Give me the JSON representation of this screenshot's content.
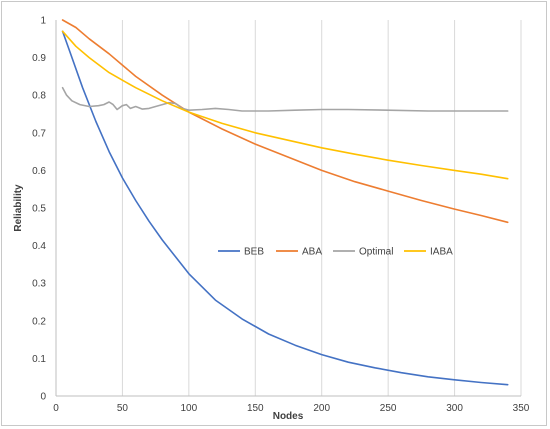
{
  "chart_data": {
    "type": "line",
    "title": "",
    "xlabel": "Nodes",
    "ylabel": "Reliability",
    "xlim": [
      0,
      350
    ],
    "ylim": [
      0,
      1
    ],
    "xticks": [
      0,
      50,
      100,
      150,
      200,
      250,
      300,
      350
    ],
    "yticks": [
      0,
      0.1,
      0.2,
      0.3,
      0.4,
      0.5,
      0.6,
      0.7,
      0.8,
      0.9,
      1
    ],
    "grid": "vertical",
    "legend_position": "center",
    "series": [
      {
        "name": "BEB",
        "color": "#4472C4",
        "points": [
          [
            5,
            0.97
          ],
          [
            10,
            0.92
          ],
          [
            20,
            0.82
          ],
          [
            30,
            0.73
          ],
          [
            40,
            0.65
          ],
          [
            50,
            0.58
          ],
          [
            60,
            0.52
          ],
          [
            70,
            0.465
          ],
          [
            80,
            0.415
          ],
          [
            90,
            0.37
          ],
          [
            100,
            0.325
          ],
          [
            120,
            0.255
          ],
          [
            140,
            0.205
          ],
          [
            160,
            0.165
          ],
          [
            180,
            0.135
          ],
          [
            200,
            0.11
          ],
          [
            220,
            0.09
          ],
          [
            240,
            0.075
          ],
          [
            260,
            0.062
          ],
          [
            280,
            0.051
          ],
          [
            300,
            0.043
          ],
          [
            320,
            0.036
          ],
          [
            340,
            0.03
          ]
        ]
      },
      {
        "name": "ABA",
        "color": "#ED7D31",
        "points": [
          [
            5,
            1.0
          ],
          [
            15,
            0.98
          ],
          [
            25,
            0.95
          ],
          [
            40,
            0.91
          ],
          [
            50,
            0.88
          ],
          [
            60,
            0.85
          ],
          [
            80,
            0.8
          ],
          [
            100,
            0.755
          ],
          [
            125,
            0.71
          ],
          [
            150,
            0.67
          ],
          [
            175,
            0.635
          ],
          [
            200,
            0.6
          ],
          [
            225,
            0.57
          ],
          [
            250,
            0.545
          ],
          [
            275,
            0.52
          ],
          [
            300,
            0.497
          ],
          [
            320,
            0.48
          ],
          [
            340,
            0.462
          ]
        ]
      },
      {
        "name": "Optimal",
        "color": "#A5A5A5",
        "points": [
          [
            5,
            0.82
          ],
          [
            8,
            0.8
          ],
          [
            12,
            0.785
          ],
          [
            18,
            0.775
          ],
          [
            25,
            0.77
          ],
          [
            32,
            0.772
          ],
          [
            36,
            0.775
          ],
          [
            40,
            0.782
          ],
          [
            43,
            0.775
          ],
          [
            46,
            0.762
          ],
          [
            50,
            0.772
          ],
          [
            53,
            0.775
          ],
          [
            56,
            0.765
          ],
          [
            60,
            0.77
          ],
          [
            65,
            0.763
          ],
          [
            70,
            0.765
          ],
          [
            75,
            0.77
          ],
          [
            80,
            0.775
          ],
          [
            85,
            0.78
          ],
          [
            90,
            0.778
          ],
          [
            95,
            0.765
          ],
          [
            100,
            0.76
          ],
          [
            110,
            0.762
          ],
          [
            120,
            0.765
          ],
          [
            130,
            0.762
          ],
          [
            140,
            0.758
          ],
          [
            160,
            0.758
          ],
          [
            180,
            0.76
          ],
          [
            200,
            0.762
          ],
          [
            220,
            0.762
          ],
          [
            250,
            0.76
          ],
          [
            280,
            0.758
          ],
          [
            310,
            0.758
          ],
          [
            340,
            0.758
          ]
        ]
      },
      {
        "name": "IABA",
        "color": "#FFC000",
        "points": [
          [
            5,
            0.97
          ],
          [
            15,
            0.93
          ],
          [
            25,
            0.9
          ],
          [
            40,
            0.86
          ],
          [
            50,
            0.84
          ],
          [
            60,
            0.82
          ],
          [
            80,
            0.785
          ],
          [
            100,
            0.755
          ],
          [
            125,
            0.725
          ],
          [
            150,
            0.7
          ],
          [
            175,
            0.68
          ],
          [
            200,
            0.66
          ],
          [
            225,
            0.643
          ],
          [
            250,
            0.627
          ],
          [
            275,
            0.613
          ],
          [
            300,
            0.6
          ],
          [
            320,
            0.59
          ],
          [
            340,
            0.578
          ]
        ]
      }
    ]
  }
}
